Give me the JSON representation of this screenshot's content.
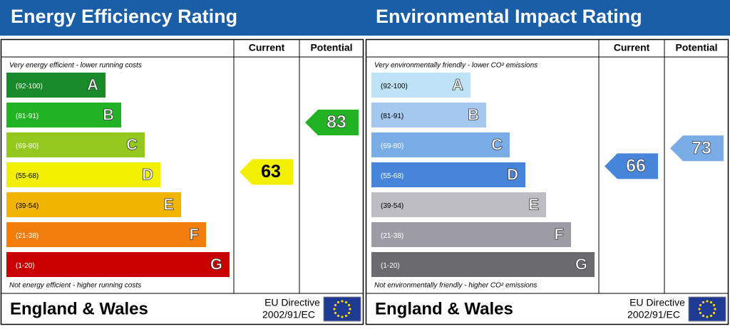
{
  "panels": [
    {
      "title": "Energy Efficiency Rating",
      "current_header": "Current",
      "potential_header": "Potential",
      "top_note": "Very energy efficient - lower running costs",
      "bottom_note": "Not energy efficient - higher running costs",
      "bands": [
        {
          "range": "(92-100)",
          "letter": "A",
          "color": "#198a2a"
        },
        {
          "range": "(81-91)",
          "letter": "B",
          "color": "#21b324"
        },
        {
          "range": "(69-80)",
          "letter": "C",
          "color": "#94c81e"
        },
        {
          "range": "(55-68)",
          "letter": "D",
          "color": "#f2f000"
        },
        {
          "range": "(39-54)",
          "letter": "E",
          "color": "#f1b500"
        },
        {
          "range": "(21-38)",
          "letter": "F",
          "color": "#f07d0c"
        },
        {
          "range": "(1-20)",
          "letter": "G",
          "color": "#c80000"
        }
      ],
      "current": 63,
      "potential": 83,
      "region": "England & Wales",
      "directive": "EU Directive",
      "directive_code": "2002/91/EC"
    },
    {
      "title": "Environmental Impact Rating",
      "current_header": "Current",
      "potential_header": "Potential",
      "top_note": "Very environmentally friendly - lower CO² emissions",
      "bottom_note": "Not environmentally friendly - higher CO² emissions",
      "bands": [
        {
          "range": "(92-100)",
          "letter": "A",
          "color": "#bfe3f6"
        },
        {
          "range": "(81-91)",
          "letter": "B",
          "color": "#a4c8ee"
        },
        {
          "range": "(69-80)",
          "letter": "C",
          "color": "#7aade6"
        },
        {
          "range": "(55-68)",
          "letter": "D",
          "color": "#4785da"
        },
        {
          "range": "(39-54)",
          "letter": "E",
          "color": "#bdbdc3"
        },
        {
          "range": "(21-38)",
          "letter": "F",
          "color": "#9d9ba3"
        },
        {
          "range": "(1-20)",
          "letter": "G",
          "color": "#6b6b6f"
        }
      ],
      "current": 66,
      "potential": 73,
      "region": "England & Wales",
      "directive": "EU Directive",
      "directive_code": "2002/91/EC"
    }
  ]
}
